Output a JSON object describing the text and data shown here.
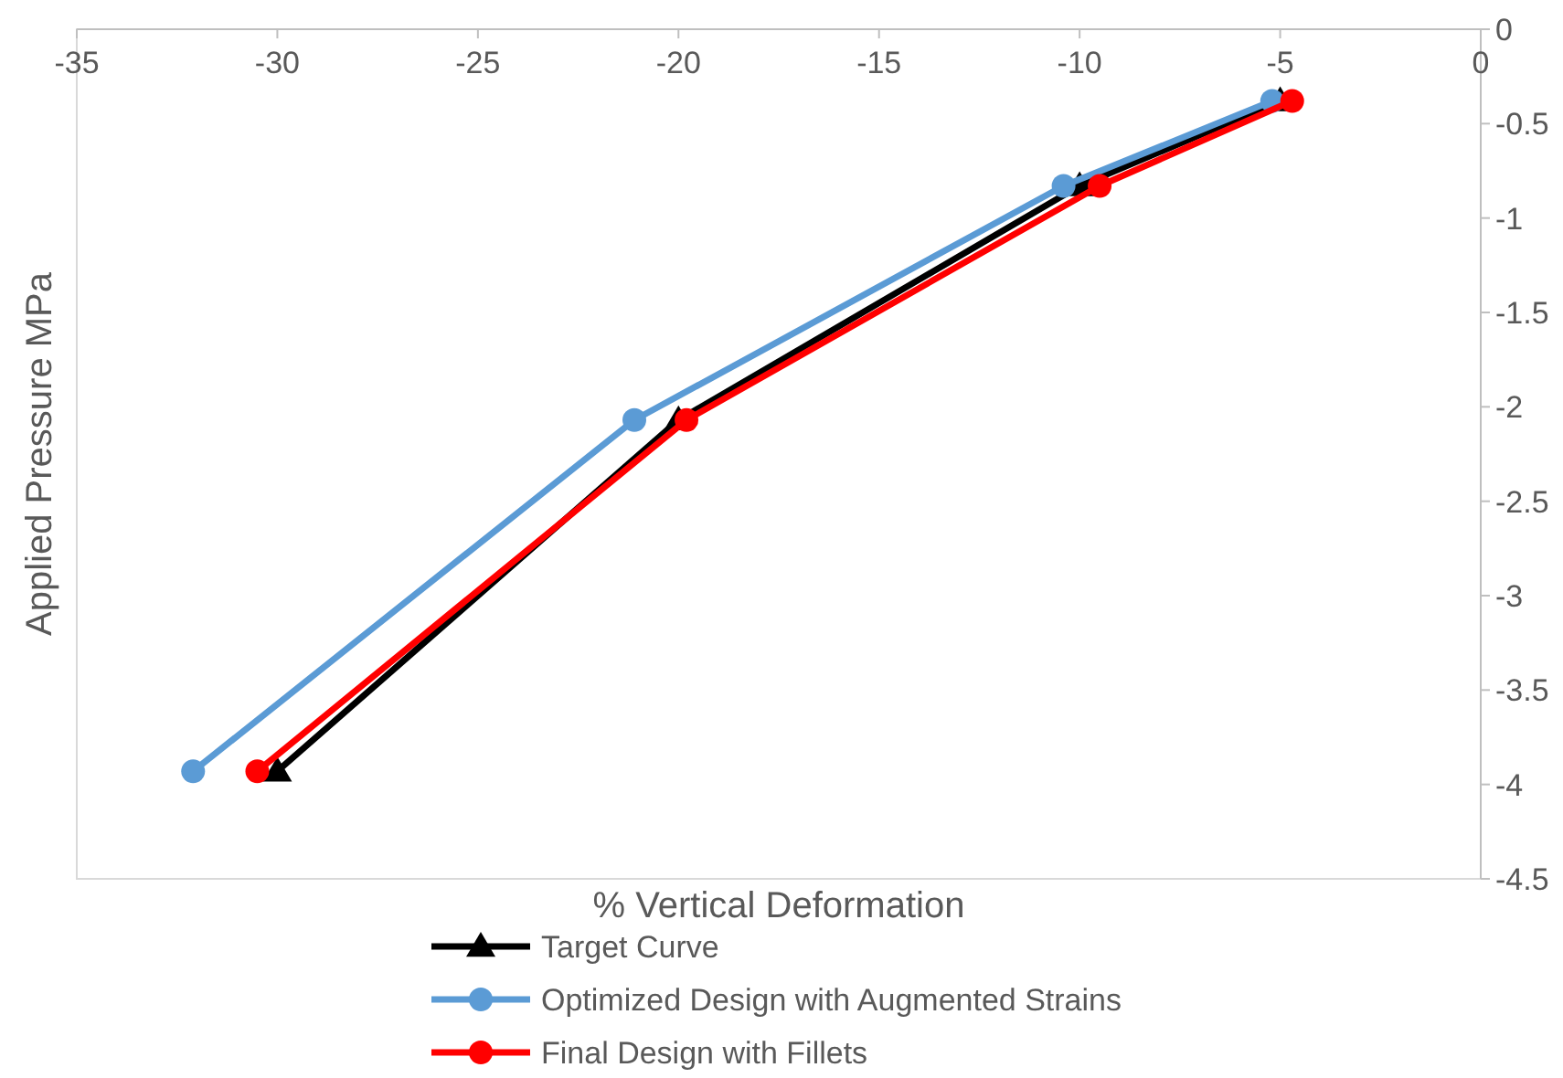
{
  "chart_data": {
    "type": "line",
    "xlabel": "% Vertical Deformation",
    "ylabel": "Applied Pressure MPa",
    "xlim": [
      -35,
      0
    ],
    "xticks": [
      -35,
      -30,
      -25,
      -20,
      -15,
      -10,
      -5,
      0
    ],
    "ylim": [
      -4.5,
      0
    ],
    "yticks": [
      0,
      -0.5,
      -1,
      -1.5,
      -2,
      -2.5,
      -3,
      -3.5,
      -4,
      -4.5
    ],
    "grid": false,
    "legend": "bottom",
    "series": [
      {
        "name": "Target Curve",
        "color": "#000000",
        "marker": "triangle",
        "x": [
          -30,
          -20,
          -10,
          -5
        ],
        "values": [
          -3.93,
          -2.07,
          -0.83,
          -0.38
        ]
      },
      {
        "name": "Optimized Design with Augmented Strains",
        "color": "#5b9bd5",
        "marker": "circle",
        "x": [
          -32.1,
          -21.1,
          -10.4,
          -5.2
        ],
        "values": [
          -3.93,
          -2.07,
          -0.83,
          -0.38
        ]
      },
      {
        "name": "Final Design with Fillets",
        "color": "#ff0000",
        "marker": "circle",
        "x": [
          -30.5,
          -19.8,
          -9.5,
          -4.7
        ],
        "values": [
          -3.93,
          -2.07,
          -0.83,
          -0.38
        ]
      }
    ]
  }
}
